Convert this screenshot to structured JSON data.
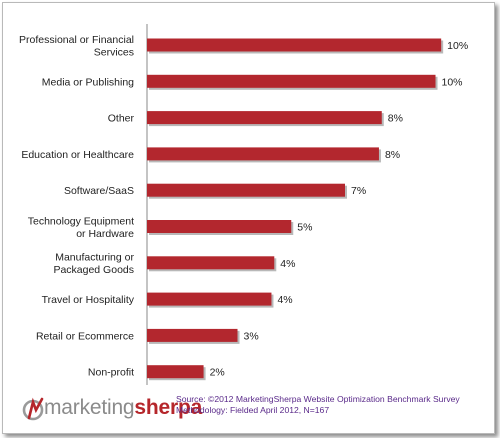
{
  "chart_data": {
    "type": "bar",
    "orientation": "horizontal",
    "categories": [
      [
        "Professional or Financial",
        "Services"
      ],
      [
        "Media or Publishing"
      ],
      [
        "Other"
      ],
      [
        "Education or Healthcare"
      ],
      [
        "Software/SaaS"
      ],
      [
        "Technology Equipment",
        "or Hardware"
      ],
      [
        "Manufacturing or",
        "Packaged Goods"
      ],
      [
        "Travel or Hospitality"
      ],
      [
        "Retail or Ecommerce"
      ],
      [
        "Non-profit"
      ]
    ],
    "values": [
      10.4,
      10.2,
      8.3,
      8.2,
      7.0,
      5.1,
      4.5,
      4.4,
      3.2,
      2.0
    ],
    "value_labels": [
      "10%",
      "10%",
      "8%",
      "8%",
      "7%",
      "5%",
      "4%",
      "4%",
      "3%",
      "2%"
    ],
    "xlim": [
      0,
      10.5
    ],
    "bar_color": "#b3272e",
    "grid": false
  },
  "logo": {
    "part1": "marketing",
    "part2": "sherpa"
  },
  "source": {
    "line1": "Source: ©2012 MarketingSherpa Website Optimization Benchmark Survey",
    "line2": "Methodology: Fielded April 2012, N=167"
  }
}
